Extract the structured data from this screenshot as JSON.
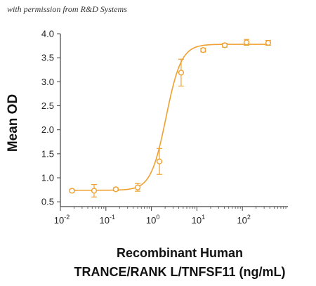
{
  "watermark": "with permission from R&D Systems",
  "colors": {
    "series": "#F0A030",
    "axis": "#444444",
    "text": "#222222"
  },
  "chart_data": {
    "type": "scatter",
    "title": "",
    "xlabel_line1": "Recombinant Human",
    "xlabel_line2": "TRANCE/RANK L/TNFSF11 (ng/mL)",
    "ylabel": "Mean OD",
    "x_scale": "log",
    "xlim": [
      0.01,
      1000
    ],
    "ylim": [
      0.4,
      4.0
    ],
    "x_ticks": [
      {
        "value": 0.01,
        "base": "10",
        "exp": "-2"
      },
      {
        "value": 0.1,
        "base": "10",
        "exp": "-1"
      },
      {
        "value": 1,
        "base": "10",
        "exp": "0"
      },
      {
        "value": 10,
        "base": "10",
        "exp": "1"
      },
      {
        "value": 100,
        "base": "10",
        "exp": "2"
      }
    ],
    "y_ticks": [
      "0.5",
      "1.0",
      "1.5",
      "2.0",
      "2.5",
      "3.0",
      "3.5",
      "4.0"
    ],
    "grid": false,
    "legend": "none",
    "points": [
      {
        "x": 0.018,
        "y": 0.73,
        "err": 0.03
      },
      {
        "x": 0.055,
        "y": 0.73,
        "err": 0.13
      },
      {
        "x": 0.165,
        "y": 0.76,
        "err": 0.03
      },
      {
        "x": 0.5,
        "y": 0.8,
        "err": 0.08
      },
      {
        "x": 1.5,
        "y": 1.34,
        "err": 0.27
      },
      {
        "x": 4.5,
        "y": 3.19,
        "err": 0.28
      },
      {
        "x": 13.7,
        "y": 3.66,
        "err": 0.04
      },
      {
        "x": 41,
        "y": 3.76,
        "err": 0.04
      },
      {
        "x": 123,
        "y": 3.82,
        "err": 0.06
      },
      {
        "x": 370,
        "y": 3.81,
        "err": 0.05
      }
    ],
    "fit": {
      "model": "4PL",
      "bottom": 0.74,
      "top": 3.78,
      "ec50": 2.1,
      "hill": 2.6
    }
  }
}
